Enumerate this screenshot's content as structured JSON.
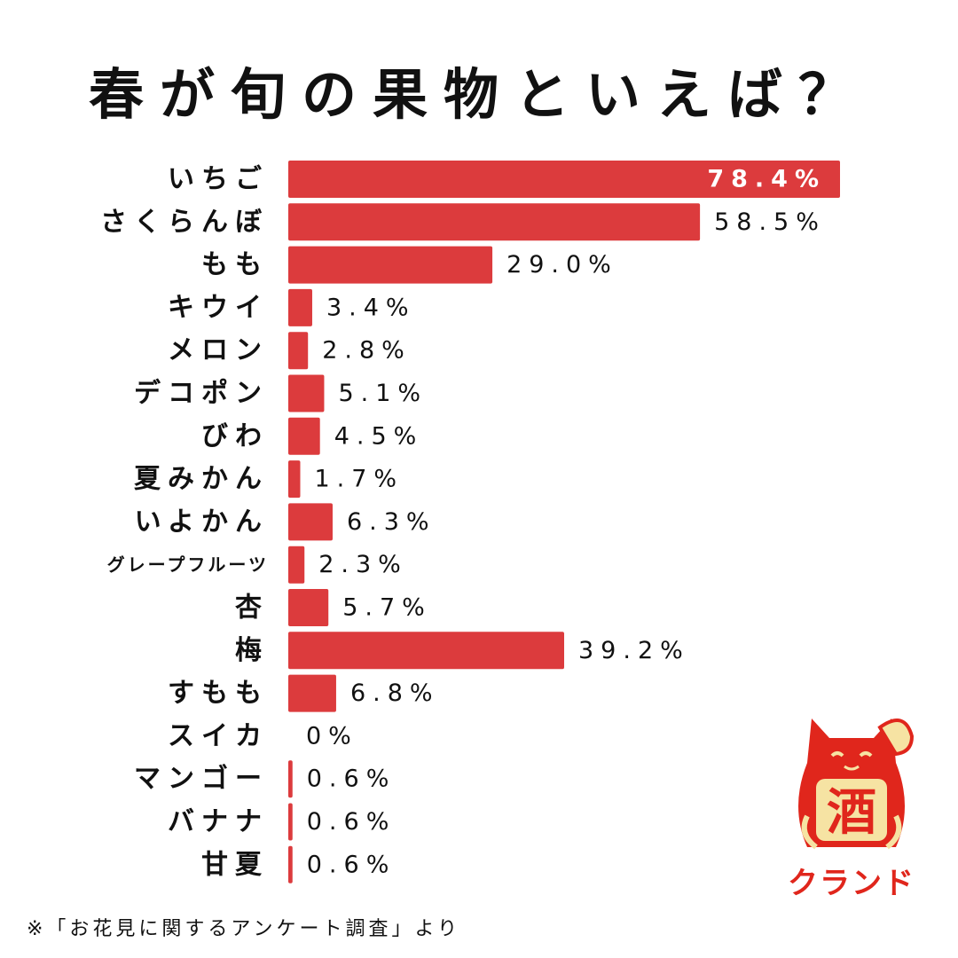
{
  "title": "春が旬の果物といえば？",
  "chart_data": {
    "type": "bar",
    "orientation": "horizontal",
    "title": "春が旬の果物といえば？",
    "unit": "%",
    "value_max": 78.4,
    "categories": [
      "いちご",
      "さくらんぼ",
      "もも",
      "キウイ",
      "メロン",
      "デコポン",
      "びわ",
      "夏みかん",
      "いよかん",
      "グレープフルーツ",
      "杏",
      "梅",
      "すもも",
      "スイカ",
      "マンゴー",
      "バナナ",
      "甘夏"
    ],
    "values": [
      78.4,
      58.5,
      29.0,
      3.4,
      2.8,
      5.1,
      4.5,
      1.7,
      6.3,
      2.3,
      5.7,
      39.2,
      6.8,
      0,
      0.6,
      0.6,
      0.6
    ],
    "value_labels": [
      "78.4%",
      "58.5%",
      "29.0%",
      "3.4%",
      "2.8%",
      "5.1%",
      "4.5%",
      "1.7%",
      "6.3%",
      "2.3%",
      "5.7%",
      "39.2%",
      "6.8%",
      "0%",
      "0.6%",
      "0.6%",
      "0.6%"
    ],
    "bar_color": "#dc3b3d",
    "grid": false,
    "legend": "none"
  },
  "footnote": "※「お花見に関するアンケート調査」より",
  "logo": {
    "glyph": "酒",
    "brand": "クランド",
    "primary_color": "#e0261c",
    "accent_color": "#f6e3a3"
  }
}
